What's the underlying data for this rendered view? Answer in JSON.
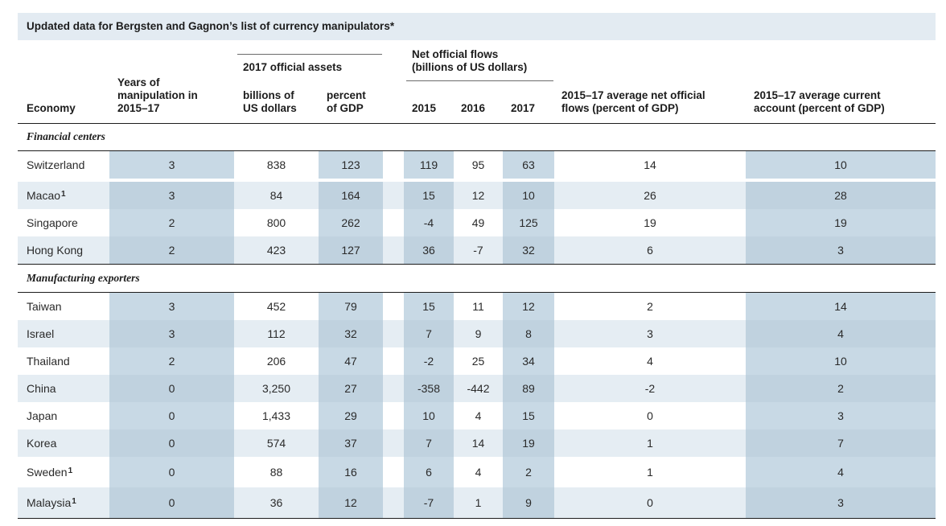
{
  "title": "Updated data for Bergsten and Gagnon’s list of currency manipulators*",
  "headers": {
    "economy": "Economy",
    "years": "Years of\nmanipulation in\n2015–17",
    "assets_group": "2017 official assets",
    "assets_billions": "billions of\nUS dollars",
    "assets_percent": "percent\nof GDP",
    "flows_group": "Net official flows\n(billions of US dollars)",
    "y2015": "2015",
    "y2016": "2016",
    "y2017": "2017",
    "avg_flows": "2015–17 average net official\nflows (percent of GDP)",
    "avg_ca": "2015–17 average current\naccount (percent of GDP)"
  },
  "sections": [
    {
      "label": "Financial centers",
      "rows": [
        {
          "economy": "Switzerland",
          "note": "",
          "years": "3",
          "assets_bn": "838",
          "assets_pct": "123",
          "f2015": "119",
          "f2016": "95",
          "f2017": "63",
          "avg_flows": "14",
          "avg_ca": "10"
        },
        {
          "economy": "Macao",
          "note": "1",
          "years": "3",
          "assets_bn": "84",
          "assets_pct": "164",
          "f2015": "15",
          "f2016": "12",
          "f2017": "10",
          "avg_flows": "26",
          "avg_ca": "28"
        },
        {
          "economy": "Singapore",
          "note": "",
          "years": "2",
          "assets_bn": "800",
          "assets_pct": "262",
          "f2015": "-4",
          "f2016": "49",
          "f2017": "125",
          "avg_flows": "19",
          "avg_ca": "19"
        },
        {
          "economy": "Hong Kong",
          "note": "",
          "years": "2",
          "assets_bn": "423",
          "assets_pct": "127",
          "f2015": "36",
          "f2016": "-7",
          "f2017": "32",
          "avg_flows": "6",
          "avg_ca": "3"
        }
      ]
    },
    {
      "label": "Manufacturing exporters",
      "rows": [
        {
          "economy": "Taiwan",
          "note": "",
          "years": "3",
          "assets_bn": "452",
          "assets_pct": "79",
          "f2015": "15",
          "f2016": "11",
          "f2017": "12",
          "avg_flows": "2",
          "avg_ca": "14"
        },
        {
          "economy": "Israel",
          "note": "",
          "years": "3",
          "assets_bn": "112",
          "assets_pct": "32",
          "f2015": "7",
          "f2016": "9",
          "f2017": "8",
          "avg_flows": "3",
          "avg_ca": "4"
        },
        {
          "economy": "Thailand",
          "note": "",
          "years": "2",
          "assets_bn": "206",
          "assets_pct": "47",
          "f2015": "-2",
          "f2016": "25",
          "f2017": "34",
          "avg_flows": "4",
          "avg_ca": "10"
        },
        {
          "economy": "China",
          "note": "",
          "years": "0",
          "assets_bn": "3,250",
          "assets_pct": "27",
          "f2015": "-358",
          "f2016": "-442",
          "f2017": "89",
          "avg_flows": "-2",
          "avg_ca": "2"
        },
        {
          "economy": "Japan",
          "note": "",
          "years": "0",
          "assets_bn": "1,433",
          "assets_pct": "29",
          "f2015": "10",
          "f2016": "4",
          "f2017": "15",
          "avg_flows": "0",
          "avg_ca": "3"
        },
        {
          "economy": "Korea",
          "note": "",
          "years": "0",
          "assets_bn": "574",
          "assets_pct": "37",
          "f2015": "7",
          "f2016": "14",
          "f2017": "19",
          "avg_flows": "1",
          "avg_ca": "7"
        },
        {
          "economy": "Sweden",
          "note": "1",
          "years": "0",
          "assets_bn": "88",
          "assets_pct": "16",
          "f2015": "6",
          "f2016": "4",
          "f2017": "2",
          "avg_flows": "1",
          "avg_ca": "4"
        },
        {
          "economy": "Malaysia",
          "note": "1",
          "years": "0",
          "assets_bn": "36",
          "assets_pct": "12",
          "f2015": "-7",
          "f2016": "1",
          "f2017": "9",
          "avg_flows": "0",
          "avg_ca": "3"
        }
      ]
    }
  ],
  "colors": {
    "title_bg": "#e3ebf2",
    "row_shade": "#e5edf3",
    "column_shade": "#c8d9e5"
  }
}
